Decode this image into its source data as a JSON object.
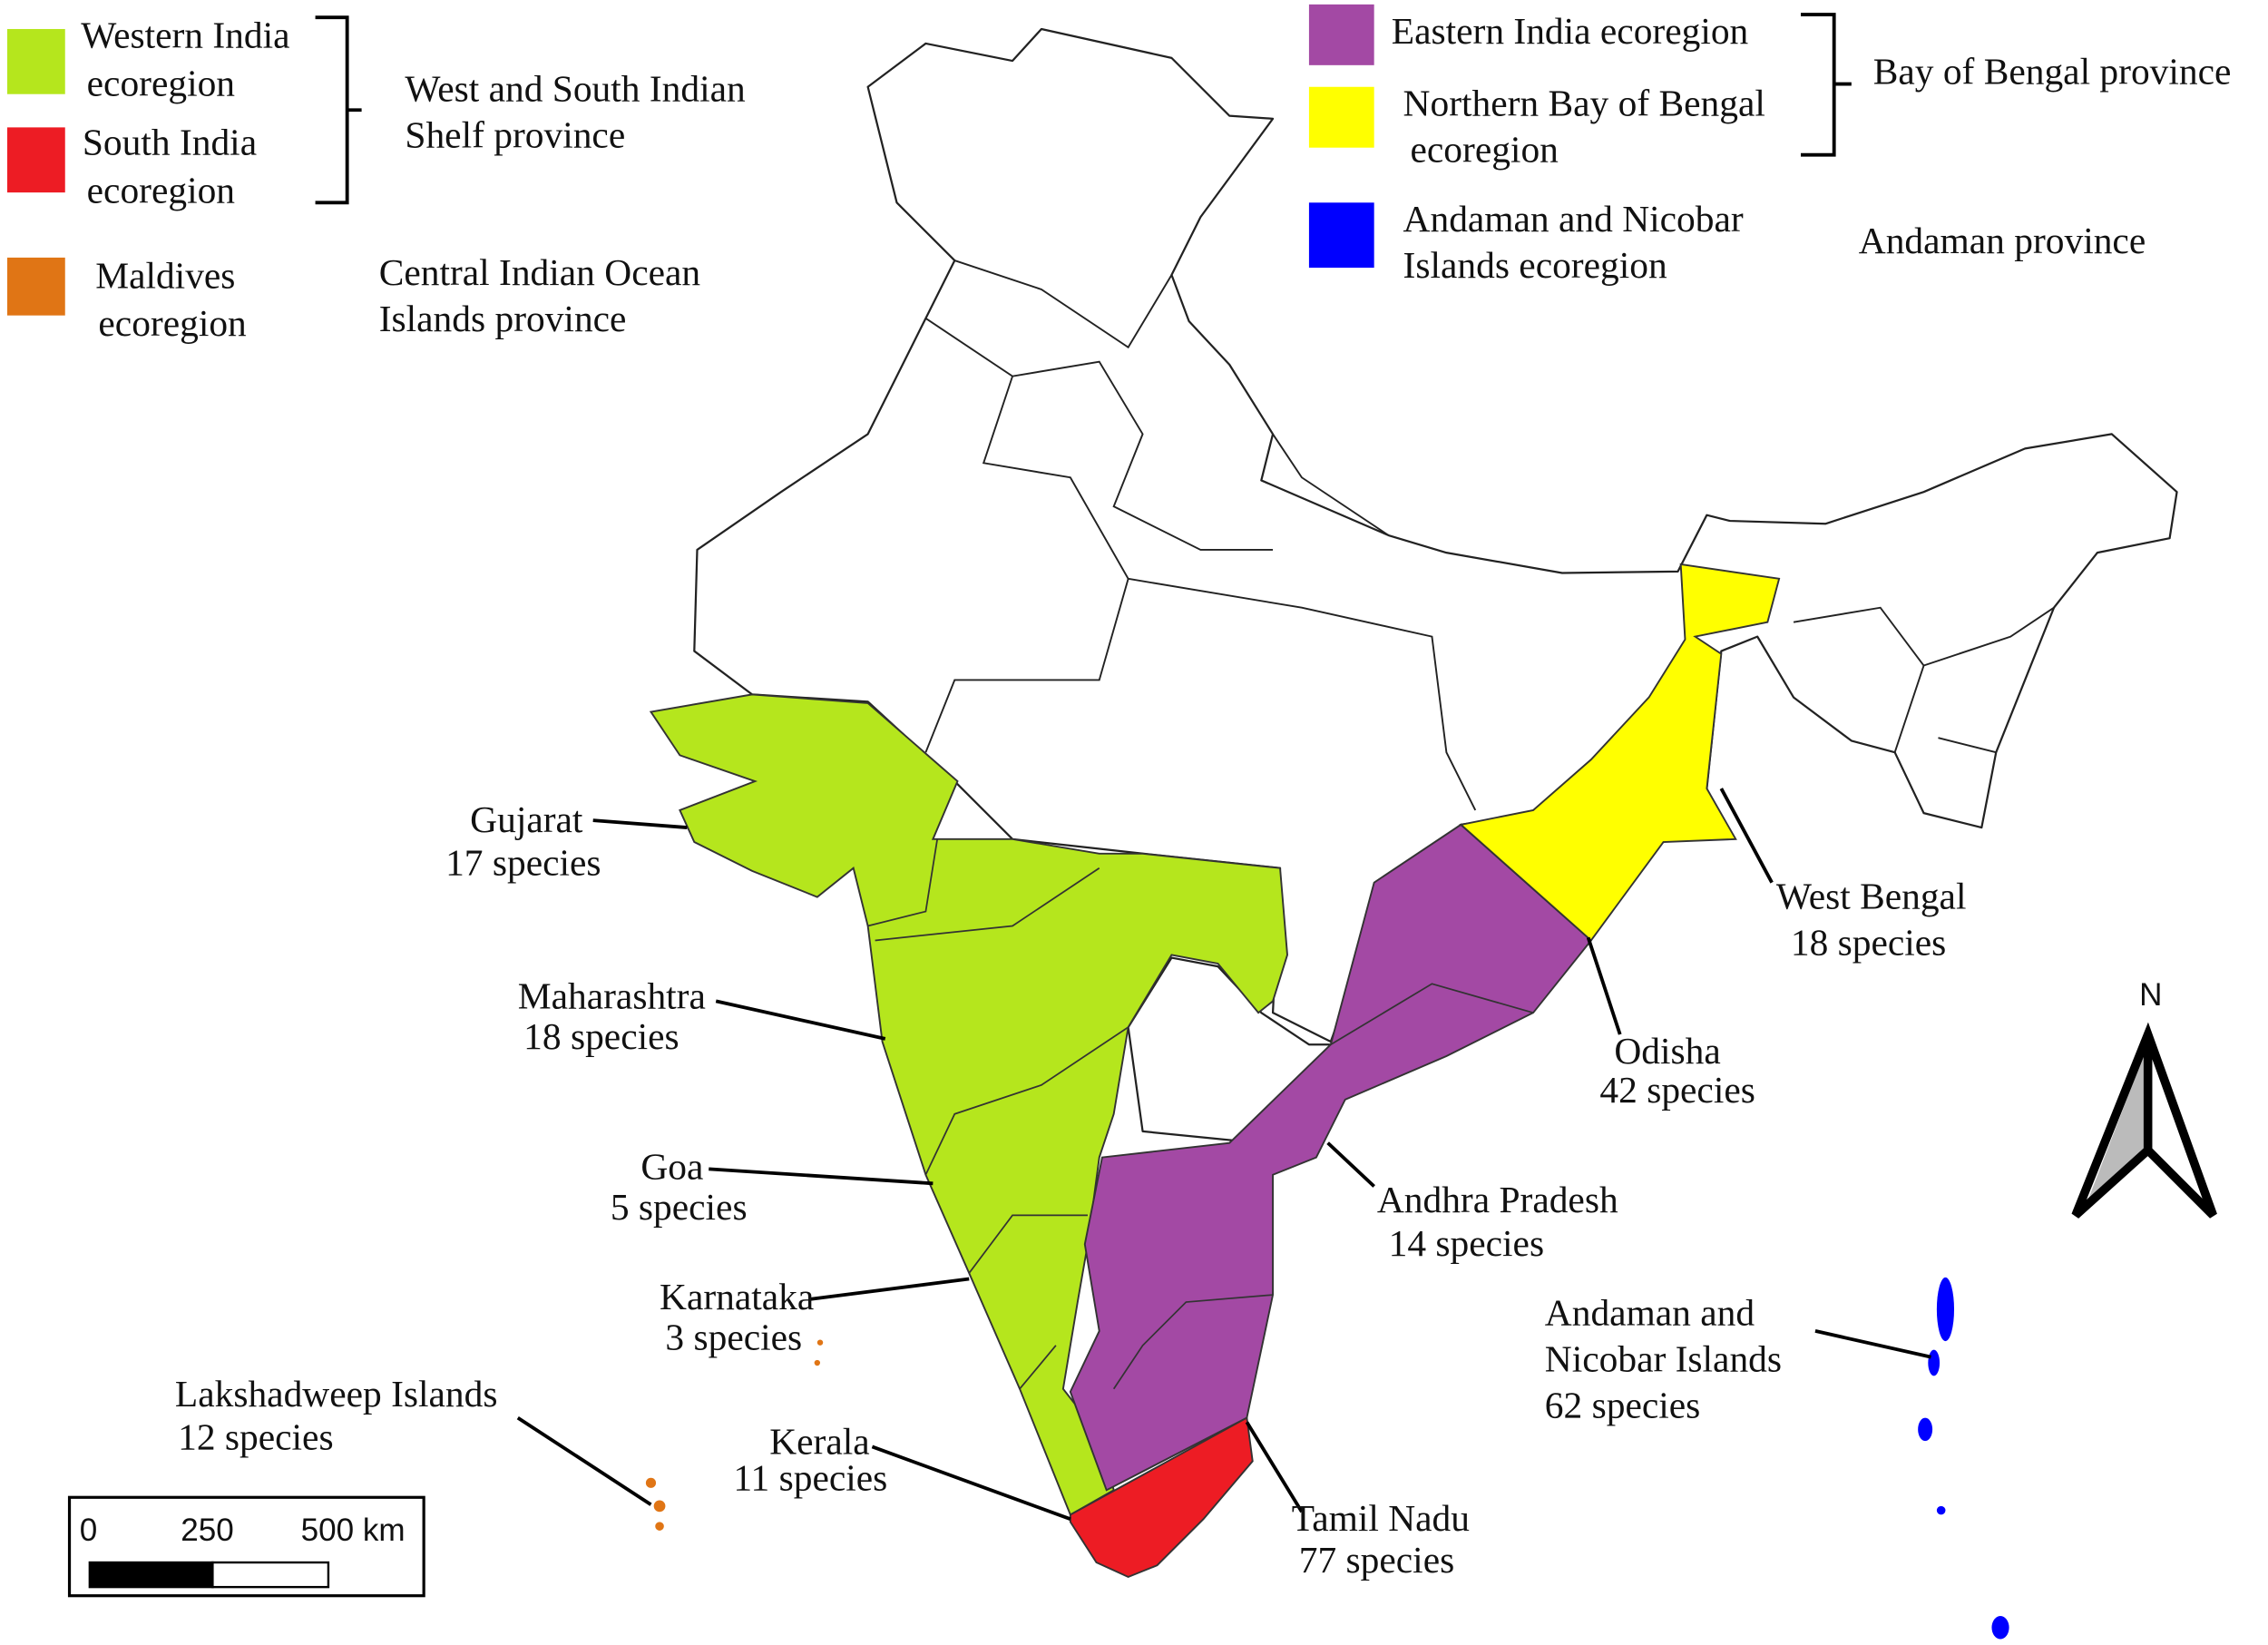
{
  "legend_left": [
    {
      "lines": [
        "Western India",
        "ecoregion"
      ],
      "color": "#b5e61d"
    },
    {
      "lines": [
        "South India",
        "ecoregion"
      ],
      "color": "#ed1c24"
    },
    {
      "lines": [
        "Maldives",
        "ecoregion"
      ],
      "color": "#e07515"
    }
  ],
  "legend_right": [
    {
      "lines": [
        "Eastern India  ecoregion"
      ],
      "color": "#a349a4"
    },
    {
      "lines": [
        "Northern Bay of Bengal",
        "ecoregion"
      ],
      "color": "#ffff00"
    },
    {
      "lines": [
        "Andaman and Nicobar",
        "Islands  ecoregion"
      ],
      "color": "#0000ff"
    }
  ],
  "provinces": [
    {
      "lines": [
        "West and South Indian",
        "Shelf province"
      ]
    },
    {
      "lines": [
        "Central Indian Ocean",
        "Islands province"
      ]
    },
    {
      "lines": [
        "Bay of Bengal province"
      ]
    },
    {
      "lines": [
        "Andaman province"
      ]
    }
  ],
  "states": [
    {
      "lines": [
        "Gujarat",
        "17 species"
      ]
    },
    {
      "lines": [
        "Maharashtra",
        "18 species"
      ]
    },
    {
      "lines": [
        "Goa",
        "5 species"
      ]
    },
    {
      "lines": [
        "Karnataka",
        "3 species"
      ]
    },
    {
      "lines": [
        "Lakshadweep Islands",
        "12 species"
      ]
    },
    {
      "lines": [
        "Kerala",
        "11 species"
      ]
    },
    {
      "lines": [
        "Tamil Nadu",
        "77 species"
      ]
    },
    {
      "lines": [
        "Andhra Pradesh",
        "14 species"
      ]
    },
    {
      "lines": [
        "Odisha",
        "42 species"
      ]
    },
    {
      "lines": [
        "West Bengal",
        "18 species"
      ]
    },
    {
      "lines": [
        "Andaman and",
        "Nicobar Islands",
        "62 species"
      ]
    }
  ],
  "scale_bar": [
    "0",
    "250",
    "500 km"
  ],
  "north": "N"
}
